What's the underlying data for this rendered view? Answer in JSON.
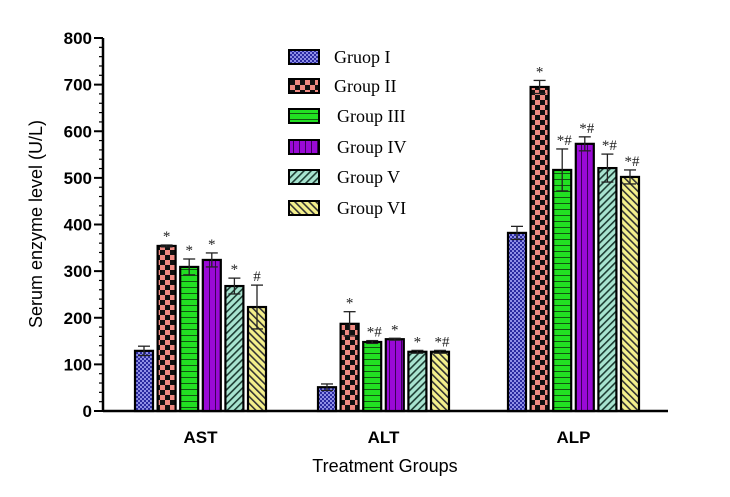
{
  "chart_data": {
    "type": "bar",
    "title": "",
    "xlabel": "Treatment Groups",
    "ylabel": "Serum enzyme level (U/L)",
    "ylim": [
      0,
      800
    ],
    "yticks": [
      0,
      100,
      200,
      300,
      400,
      500,
      600,
      700,
      800
    ],
    "grid": false,
    "legend_position": "top-center",
    "categories": [
      "AST",
      "ALT",
      "ALP"
    ],
    "series": [
      {
        "name": "Gruop I",
        "color": "#8f8fe6",
        "pattern": "dots",
        "values": [
          129,
          51,
          382
        ],
        "errors": [
          10,
          7,
          14
        ],
        "significance": [
          "",
          "",
          ""
        ]
      },
      {
        "name": "Group II",
        "color": "#f08a82",
        "pattern": "checker",
        "values": [
          354,
          187,
          695
        ],
        "errors": [
          2,
          26,
          14
        ],
        "significance": [
          "*",
          "*",
          "*"
        ]
      },
      {
        "name": "Group III",
        "color": "#22e022",
        "pattern": "horizontal",
        "values": [
          309,
          148,
          517
        ],
        "errors": [
          17,
          3,
          45
        ],
        "significance": [
          "*",
          "*#",
          "*#"
        ]
      },
      {
        "name": "Group IV",
        "color": "#9a0ad6",
        "pattern": "vertical",
        "values": [
          324,
          154,
          573
        ],
        "errors": [
          15,
          2,
          15
        ],
        "significance": [
          "*",
          "*",
          "*#"
        ]
      },
      {
        "name": "Group V",
        "color": "#a8e4d0",
        "pattern": "diag-right",
        "values": [
          268,
          127,
          521
        ],
        "errors": [
          17,
          3,
          30
        ],
        "significance": [
          "*",
          "*",
          "*#"
        ]
      },
      {
        "name": "Group VI",
        "color": "#f4f08c",
        "pattern": "diag-left",
        "values": [
          223,
          127,
          502
        ],
        "errors": [
          47,
          3,
          15
        ],
        "significance": [
          "#",
          "*#",
          "*#"
        ]
      }
    ]
  }
}
